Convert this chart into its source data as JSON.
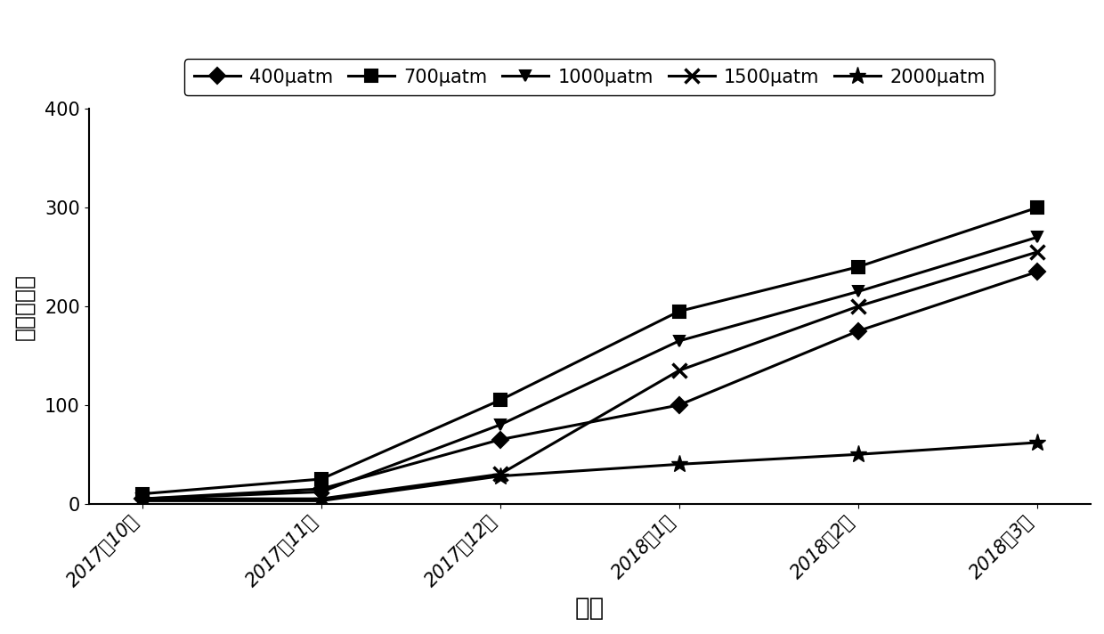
{
  "x_labels": [
    "2017年10月",
    "2017年11月",
    "2017年12月",
    "2018年1月",
    "2018年2月",
    "2018年3月"
  ],
  "series": [
    {
      "label": "400μatm",
      "values": [
        5,
        15,
        65,
        100,
        175,
        235
      ],
      "marker": "D",
      "markersize": 9,
      "linewidth": 2.2
    },
    {
      "label": "700μatm",
      "values": [
        10,
        25,
        105,
        195,
        240,
        300
      ],
      "marker": "s",
      "markersize": 10,
      "linewidth": 2.2
    },
    {
      "label": "1000μatm",
      "values": [
        5,
        12,
        80,
        165,
        215,
        270
      ],
      "marker": "v",
      "markersize": 9,
      "linewidth": 2.2
    },
    {
      "label": "1500μatm",
      "values": [
        5,
        5,
        30,
        135,
        200,
        255
      ],
      "marker": "x",
      "markersize": 11,
      "linewidth": 2.2,
      "markeredgewidth": 2.5
    },
    {
      "label": "2000μatm",
      "values": [
        3,
        3,
        28,
        40,
        50,
        62
      ],
      "marker": "*",
      "markersize": 14,
      "linewidth": 2.2,
      "markeredgewidth": 1.0
    }
  ],
  "ylabel": "鲜重（克）",
  "xlabel": "时间",
  "ylim": [
    0,
    400
  ],
  "yticks": [
    0,
    100,
    200,
    300,
    400
  ],
  "line_color": "#000000",
  "background_color": "#ffffff",
  "ylabel_fontsize": 18,
  "xlabel_fontsize": 20,
  "tick_fontsize": 15,
  "legend_fontsize": 15
}
